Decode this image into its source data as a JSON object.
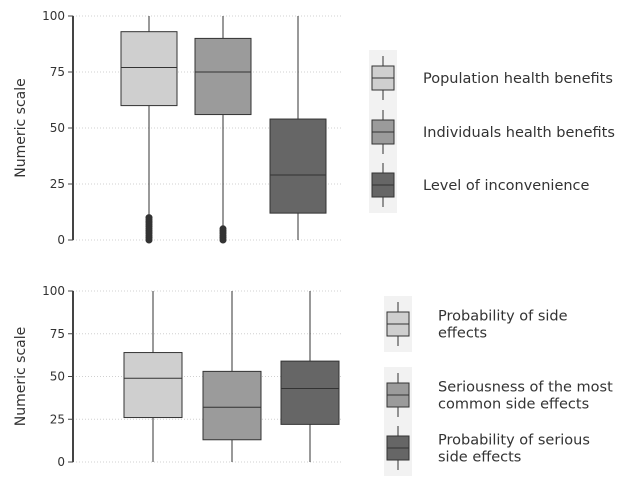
{
  "chart_data": [
    {
      "type": "box",
      "ylabel": "Numeric scale",
      "ylim": [
        0,
        100
      ],
      "yticks": [
        0,
        25,
        50,
        75,
        100
      ],
      "grid": true,
      "legend_position": "right",
      "series": [
        {
          "name": "Population health benefits",
          "color": "#cfcfcf",
          "min": 0,
          "q1": 60,
          "median": 77,
          "q3": 93,
          "max": 100,
          "outliers": [
            0,
            1,
            2,
            3,
            4,
            5,
            6,
            7,
            8,
            9,
            10
          ]
        },
        {
          "name": "Individuals health benefits",
          "color": "#9b9b9b",
          "min": 0,
          "q1": 56,
          "median": 75,
          "q3": 90,
          "max": 100,
          "outliers": [
            0,
            1,
            2,
            3,
            4,
            5
          ]
        },
        {
          "name": "Level of inconvenience",
          "color": "#666666",
          "min": 0,
          "q1": 12,
          "median": 29,
          "q3": 54,
          "max": 100,
          "outliers": []
        }
      ]
    },
    {
      "type": "box",
      "ylabel": "Numeric scale",
      "ylim": [
        0,
        100
      ],
      "yticks": [
        0,
        25,
        50,
        75,
        100
      ],
      "grid": true,
      "legend_position": "right",
      "series": [
        {
          "name": "Probability of side effects",
          "color": "#cfcfcf",
          "min": 0,
          "q1": 26,
          "median": 49,
          "q3": 64,
          "max": 100,
          "outliers": []
        },
        {
          "name": "Seriousness of the most common side effects",
          "color": "#9b9b9b",
          "min": 0,
          "q1": 13,
          "median": 32,
          "q3": 53,
          "max": 100,
          "outliers": []
        },
        {
          "name": "Probability of serious side effects",
          "color": "#666666",
          "min": 0,
          "q1": 22,
          "median": 43,
          "q3": 59,
          "max": 100,
          "outliers": []
        }
      ]
    }
  ]
}
